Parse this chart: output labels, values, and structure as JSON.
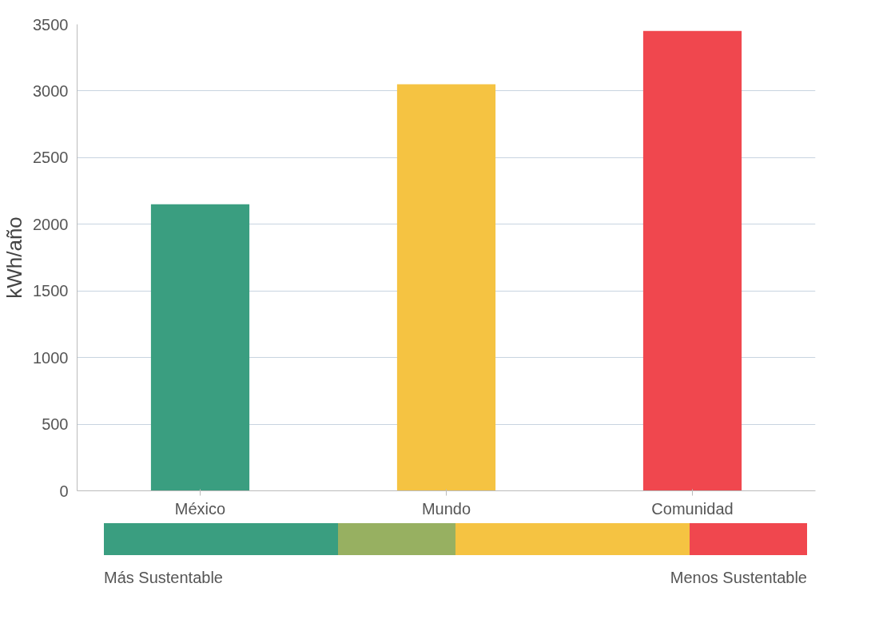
{
  "chart_data": {
    "type": "bar",
    "ylabel": "kWh/año",
    "categories": [
      "México",
      "Mundo",
      "Comunidad"
    ],
    "values": [
      2150,
      3050,
      3450
    ],
    "colors": [
      "#3a9e80",
      "#f5c342",
      "#f0474e"
    ],
    "ylim": [
      0,
      3500
    ],
    "yticks": [
      0,
      500,
      1000,
      1500,
      2000,
      2500,
      3000,
      3500
    ],
    "grid": "y",
    "annotations": [
      "Más Sustentable",
      "Menos Sustentable"
    ]
  }
}
